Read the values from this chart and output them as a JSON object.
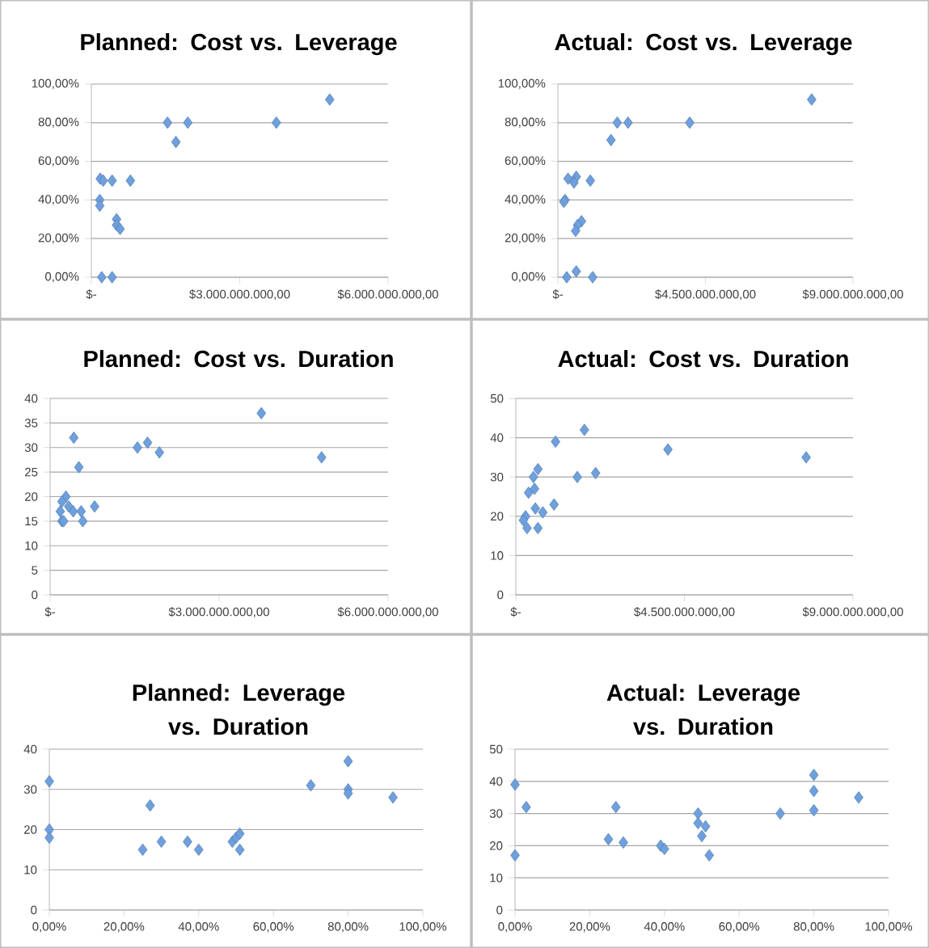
{
  "chart_data": [
    {
      "type": "scatter",
      "title": "Planned: Cost vs. Leverage",
      "grid": "y",
      "marker": "diamond",
      "xlim": [
        0,
        6000000000
      ],
      "xticks": [
        {
          "value": 0,
          "label": "$-"
        },
        {
          "value": 3000000000,
          "label": "$3.000.000.000,00"
        },
        {
          "value": 6000000000,
          "label": "$6.000.000.000,00"
        }
      ],
      "ylim": [
        0,
        100
      ],
      "yticks": [
        {
          "value": 0,
          "label": "0,00%"
        },
        {
          "value": 20,
          "label": "20,00%"
        },
        {
          "value": 40,
          "label": "40,00%"
        },
        {
          "value": 60,
          "label": "60,00%"
        },
        {
          "value": 80,
          "label": "80,00%"
        },
        {
          "value": 100,
          "label": "100,00%"
        }
      ],
      "series": [
        {
          "color": "#6fa0dc",
          "x": [
            4820000000,
            1540000000,
            1950000000,
            3740000000,
            1710000000,
            180000000,
            240000000,
            420000000,
            790000000,
            170000000,
            170000000,
            510000000,
            510000000,
            580000000,
            210000000,
            420000000
          ],
          "values": [
            92,
            80,
            80,
            80,
            70,
            51,
            50,
            50,
            50,
            40,
            37,
            30,
            27,
            25,
            0,
            0
          ]
        }
      ]
    },
    {
      "type": "scatter",
      "title": "Actual: Cost vs. Leverage",
      "grid": "y",
      "marker": "diamond",
      "xlim": [
        0,
        9000000000
      ],
      "xticks": [
        {
          "value": 0,
          "label": "$-"
        },
        {
          "value": 4500000000,
          "label": "$4.500.000.000,00"
        },
        {
          "value": 9000000000,
          "label": "$9.000.000.000,00"
        }
      ],
      "ylim": [
        0,
        100
      ],
      "yticks": [
        {
          "value": 0,
          "label": "0,00%"
        },
        {
          "value": 20,
          "label": "20,00%"
        },
        {
          "value": 40,
          "label": "40,00%"
        },
        {
          "value": 60,
          "label": "60,00%"
        },
        {
          "value": 80,
          "label": "80,00%"
        },
        {
          "value": 100,
          "label": "100,00%"
        }
      ],
      "series": [
        {
          "color": "#6fa0dc",
          "x": [
            7740000000,
            1810000000,
            2140000000,
            4020000000,
            1620000000,
            310000000,
            560000000,
            490000000,
            990000000,
            220000000,
            180000000,
            720000000,
            600000000,
            540000000,
            270000000,
            560000000,
            1060000000
          ],
          "values": [
            92,
            80,
            80,
            80,
            71,
            51,
            52,
            49,
            50,
            40,
            39,
            29,
            27,
            24,
            0,
            3,
            0
          ]
        }
      ]
    },
    {
      "type": "scatter",
      "title": "Planned: Cost vs. Duration",
      "grid": "y",
      "marker": "diamond",
      "xlim": [
        0,
        6000000000
      ],
      "xticks": [
        {
          "value": 0,
          "label": "$-"
        },
        {
          "value": 3000000000,
          "label": "$3.000.000.000,00"
        },
        {
          "value": 6000000000,
          "label": "$6.000.000.000,00"
        }
      ],
      "ylim": [
        0,
        40
      ],
      "yticks": [
        0,
        5,
        10,
        15,
        20,
        25,
        30,
        35,
        40
      ],
      "series": [
        {
          "color": "#6fa0dc",
          "x": [
            3750000000,
            4820000000,
            1550000000,
            1730000000,
            1940000000,
            420000000,
            510000000,
            280000000,
            210000000,
            330000000,
            180000000,
            410000000,
            550000000,
            790000000,
            210000000,
            240000000,
            580000000
          ],
          "values": [
            37,
            28,
            30,
            31,
            29,
            32,
            26,
            20,
            19,
            18,
            17,
            17,
            17,
            18,
            15,
            15,
            15
          ]
        }
      ]
    },
    {
      "type": "scatter",
      "title": "Actual: Cost vs. Duration",
      "grid": "y",
      "marker": "diamond",
      "xlim": [
        0,
        9000000000
      ],
      "xticks": [
        {
          "value": 0,
          "label": "$-"
        },
        {
          "value": 4500000000,
          "label": "$4.500.000.000,00"
        },
        {
          "value": 9000000000,
          "label": "$9.000.000.000,00"
        }
      ],
      "ylim": [
        0,
        50
      ],
      "yticks": [
        0,
        10,
        20,
        30,
        40,
        50
      ],
      "series": [
        {
          "color": "#6fa0dc",
          "x": [
            7750000000,
            4060000000,
            1830000000,
            1060000000,
            1640000000,
            2130000000,
            590000000,
            470000000,
            500000000,
            340000000,
            520000000,
            1020000000,
            720000000,
            260000000,
            200000000,
            300000000,
            590000000
          ],
          "values": [
            35,
            37,
            42,
            39,
            30,
            31,
            32,
            30,
            27,
            26,
            22,
            23,
            21,
            20,
            19,
            17,
            17
          ]
        }
      ]
    },
    {
      "type": "scatter",
      "title": "Planned: Leverage vs. Duration",
      "grid": "y",
      "marker": "diamond",
      "xlim": [
        0,
        100
      ],
      "xticks": [
        {
          "value": 0,
          "label": "0,00%"
        },
        {
          "value": 20,
          "label": "20,00%"
        },
        {
          "value": 40,
          "label": "40,00%"
        },
        {
          "value": 60,
          "label": "60,00%"
        },
        {
          "value": 80,
          "label": "80,00%"
        },
        {
          "value": 100,
          "label": "100,00%"
        }
      ],
      "ylim": [
        0,
        40
      ],
      "yticks": [
        0,
        10,
        20,
        30,
        40
      ],
      "series": [
        {
          "color": "#6fa0dc",
          "x": [
            0,
            0,
            0,
            25,
            27,
            30,
            37,
            40,
            49,
            50,
            51,
            51,
            70,
            80,
            80,
            80,
            92
          ],
          "values": [
            32,
            20,
            18,
            15,
            26,
            17,
            17,
            15,
            17,
            18,
            19,
            15,
            31,
            37,
            30,
            29,
            28
          ]
        }
      ]
    },
    {
      "type": "scatter",
      "title": "Actual: Leverage vs. Duration",
      "grid": "y",
      "marker": "diamond",
      "xlim": [
        0,
        100
      ],
      "xticks": [
        {
          "value": 0,
          "label": "0,00%"
        },
        {
          "value": 20,
          "label": "20,00%"
        },
        {
          "value": 40,
          "label": "40,00%"
        },
        {
          "value": 60,
          "label": "60,00%"
        },
        {
          "value": 80,
          "label": "80,00%"
        },
        {
          "value": 100,
          "label": "100,00%"
        }
      ],
      "ylim": [
        0,
        50
      ],
      "yticks": [
        0,
        10,
        20,
        30,
        40,
        50
      ],
      "series": [
        {
          "color": "#6fa0dc",
          "x": [
            0,
            0,
            3,
            25,
            27,
            29,
            39,
            40,
            49,
            49,
            51,
            50,
            52,
            71,
            80,
            80,
            80,
            92
          ],
          "values": [
            39,
            17,
            32,
            22,
            32,
            21,
            20,
            19,
            30,
            27,
            26,
            23,
            17,
            30,
            31,
            37,
            42,
            35
          ]
        }
      ]
    }
  ]
}
